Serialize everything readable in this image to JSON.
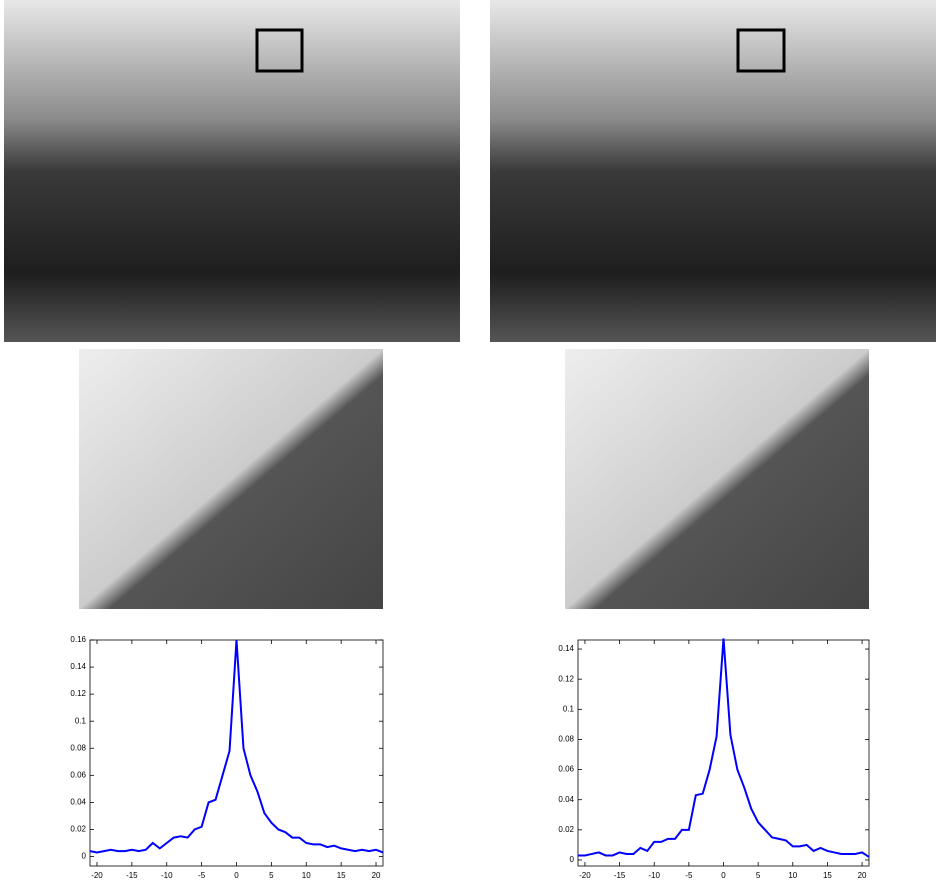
{
  "chart_data": [
    {
      "type": "line",
      "x": [
        -21,
        -20,
        -19,
        -18,
        -17,
        -16,
        -15,
        -14,
        -13,
        -12,
        -11,
        -10,
        -9,
        -8,
        -7,
        -6,
        -5,
        -4,
        -3,
        -2,
        -1,
        0,
        1,
        2,
        3,
        4,
        5,
        6,
        7,
        8,
        9,
        10,
        11,
        12,
        13,
        14,
        15,
        16,
        17,
        18,
        19,
        20,
        21
      ],
      "series": [
        {
          "color": "#0000ff",
          "values": [
            0.004,
            0.003,
            0.004,
            0.005,
            0.004,
            0.004,
            0.005,
            0.004,
            0.005,
            0.01,
            0.006,
            0.01,
            0.014,
            0.015,
            0.014,
            0.02,
            0.022,
            0.04,
            0.042,
            0.06,
            0.078,
            0.16,
            0.08,
            0.06,
            0.048,
            0.032,
            0.025,
            0.02,
            0.018,
            0.014,
            0.014,
            0.01,
            0.009,
            0.009,
            0.007,
            0.008,
            0.006,
            0.005,
            0.004,
            0.005,
            0.004,
            0.005,
            0.003
          ]
        }
      ],
      "xlim": [
        -21,
        21
      ],
      "xticks": [
        -20,
        -15,
        -10,
        -5,
        0,
        5,
        10,
        15,
        20
      ],
      "ylim": [
        -0.007,
        0.16
      ],
      "yticks": [
        0,
        0.02,
        0.04,
        0.06,
        0.08,
        0.1,
        0.12,
        0.14,
        0.16
      ]
    },
    {
      "type": "line",
      "x": [
        -21,
        -20,
        -19,
        -18,
        -17,
        -16,
        -15,
        -14,
        -13,
        -12,
        -11,
        -10,
        -9,
        -8,
        -7,
        -6,
        -5,
        -4,
        -3,
        -2,
        -1,
        0,
        1,
        2,
        3,
        4,
        5,
        6,
        7,
        8,
        9,
        10,
        11,
        12,
        13,
        14,
        15,
        16,
        17,
        18,
        19,
        20,
        21
      ],
      "series": [
        {
          "color": "#0000ff",
          "values": [
            0.003,
            0.003,
            0.004,
            0.005,
            0.003,
            0.003,
            0.005,
            0.004,
            0.004,
            0.008,
            0.006,
            0.012,
            0.012,
            0.014,
            0.014,
            0.02,
            0.02,
            0.043,
            0.044,
            0.06,
            0.082,
            0.147,
            0.083,
            0.06,
            0.048,
            0.034,
            0.025,
            0.02,
            0.015,
            0.014,
            0.013,
            0.009,
            0.009,
            0.01,
            0.006,
            0.008,
            0.006,
            0.005,
            0.004,
            0.004,
            0.004,
            0.005,
            0.002
          ]
        }
      ],
      "xlim": [
        -21,
        21
      ],
      "xticks": [
        -20,
        -15,
        -10,
        -5,
        0,
        5,
        10,
        15,
        20
      ],
      "ylim": [
        -0.004,
        0.146
      ],
      "yticks": [
        0,
        0.02,
        0.04,
        0.06,
        0.08,
        0.1,
        0.12,
        0.14
      ]
    }
  ]
}
